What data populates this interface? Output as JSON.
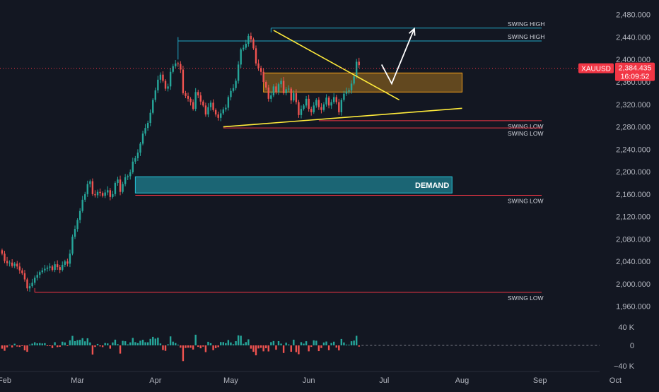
{
  "colors": {
    "background": "#131722",
    "up": "#26a69a",
    "down": "#ef5350",
    "axis_text": "#b2b5be",
    "grid": "#1e222d",
    "zone_orange": "#f7a21b",
    "zone_demand": "#26c6da",
    "trendline": "#ffeb3b",
    "swing_high": "#22a7c5",
    "swing_low": "#f23645",
    "price_tag": "#f23645",
    "projection": "#ffffff"
  },
  "chart_data": {
    "type": "candlestick",
    "symbol": "XAUUSD",
    "last_price": "2,384.435",
    "countdown": "16:09:52",
    "price_axis": {
      "range": [
        1942,
        2496
      ],
      "ticks": [
        2480,
        2440,
        2400,
        2360,
        2320,
        2280,
        2240,
        2200,
        2160,
        2120,
        2080,
        2040,
        2000,
        1960
      ],
      "tick_labels": [
        "2,480.000",
        "2,440.000",
        "2,400.000",
        "2,360.000",
        "2,320.000",
        "2,280.000",
        "2,240.000",
        "2,200.000",
        "2,160.000",
        "2,120.000",
        "2,080.000",
        "2,040.000",
        "2,000.000",
        "1,960.000"
      ]
    },
    "time_axis": {
      "labels": [
        "Feb",
        "Mar",
        "Apr",
        "May",
        "Jun",
        "Jul",
        "Aug",
        "Sep",
        "Oct"
      ],
      "label_day_index": [
        0,
        29,
        60,
        90,
        121,
        151,
        182,
        213,
        243
      ]
    },
    "candles_start_day_index": -1,
    "candles_close": [
      2054,
      2041,
      2037,
      2038,
      2032,
      2036,
      2031,
      2024,
      2019,
      2008,
      1992,
      1996,
      2002,
      2011,
      2016,
      2021,
      2024,
      2027,
      2029,
      2031,
      2025,
      2035,
      2030,
      2025,
      2034,
      2040,
      2036,
      2054,
      2084,
      2098,
      2114,
      2130,
      2150,
      2160,
      2178,
      2183,
      2160,
      2158,
      2164,
      2162,
      2157,
      2163,
      2167,
      2155,
      2160,
      2180,
      2186,
      2164,
      2178,
      2190,
      2192,
      2199,
      2218,
      2224,
      2234,
      2250,
      2268,
      2278,
      2287,
      2305,
      2328,
      2345,
      2364,
      2373,
      2362,
      2348,
      2352,
      2378,
      2388,
      2393,
      2392,
      2382,
      2340,
      2335,
      2330,
      2324,
      2312,
      2342,
      2336,
      2325,
      2318,
      2302,
      2315,
      2323,
      2310,
      2302,
      2296,
      2304,
      2311,
      2314,
      2333,
      2344,
      2349,
      2362,
      2391,
      2418,
      2421,
      2428,
      2442,
      2436,
      2420,
      2393,
      2385,
      2378,
      2360,
      2350,
      2330,
      2336,
      2352,
      2342,
      2356,
      2362,
      2340,
      2347,
      2348,
      2327,
      2340,
      2324,
      2301,
      2312,
      2318,
      2330,
      2312,
      2306,
      2318,
      2328,
      2315,
      2310,
      2320,
      2332,
      2318,
      2324,
      2333,
      2324,
      2306,
      2328,
      2339,
      2343,
      2345,
      2357,
      2370,
      2396,
      2390
    ],
    "volume_axis": {
      "labels": [
        "40 K",
        "0",
        "−40 K"
      ],
      "values": [
        40000,
        0,
        -40000
      ],
      "range": [
        -52000,
        52000
      ]
    },
    "demand_zone": {
      "label": "DEMAND",
      "price_low": 2162,
      "price_high": 2191,
      "day_from": 52,
      "day_to": 178
    },
    "resistance_zone": {
      "price_low": 2342,
      "price_high": 2376,
      "day_from": 103,
      "day_to": 182
    },
    "trendlines": [
      {
        "name": "descending",
        "from": {
          "day": 107,
          "price": 2452
        },
        "to": {
          "day": 157,
          "price": 2328
        }
      },
      {
        "name": "ascending",
        "from": {
          "day": 87,
          "price": 2280
        },
        "to": {
          "day": 182,
          "price": 2313
        }
      }
    ],
    "projection_path": [
      {
        "day": 150,
        "price": 2391
      },
      {
        "day": 154,
        "price": 2357
      },
      {
        "day": 163,
        "price": 2455
      }
    ],
    "swing_levels": [
      {
        "label": "SWING HIGH",
        "price": 2456,
        "day_from": 106,
        "kind": "high"
      },
      {
        "label": "SWING HIGH",
        "price": 2433,
        "day_from": 69,
        "kind": "high"
      },
      {
        "label": "SWING LOW",
        "price": 2291,
        "day_from": 125,
        "kind": "low"
      },
      {
        "label": "SWING LOW",
        "price": 2278,
        "day_from": 87,
        "kind": "low"
      },
      {
        "label": "SWING LOW",
        "price": 2158,
        "day_from": 52,
        "kind": "low"
      },
      {
        "label": "SWING LOW",
        "price": 1985,
        "day_from": 12,
        "kind": "low"
      }
    ],
    "watermark": {
      "x_char": "b"
    }
  }
}
